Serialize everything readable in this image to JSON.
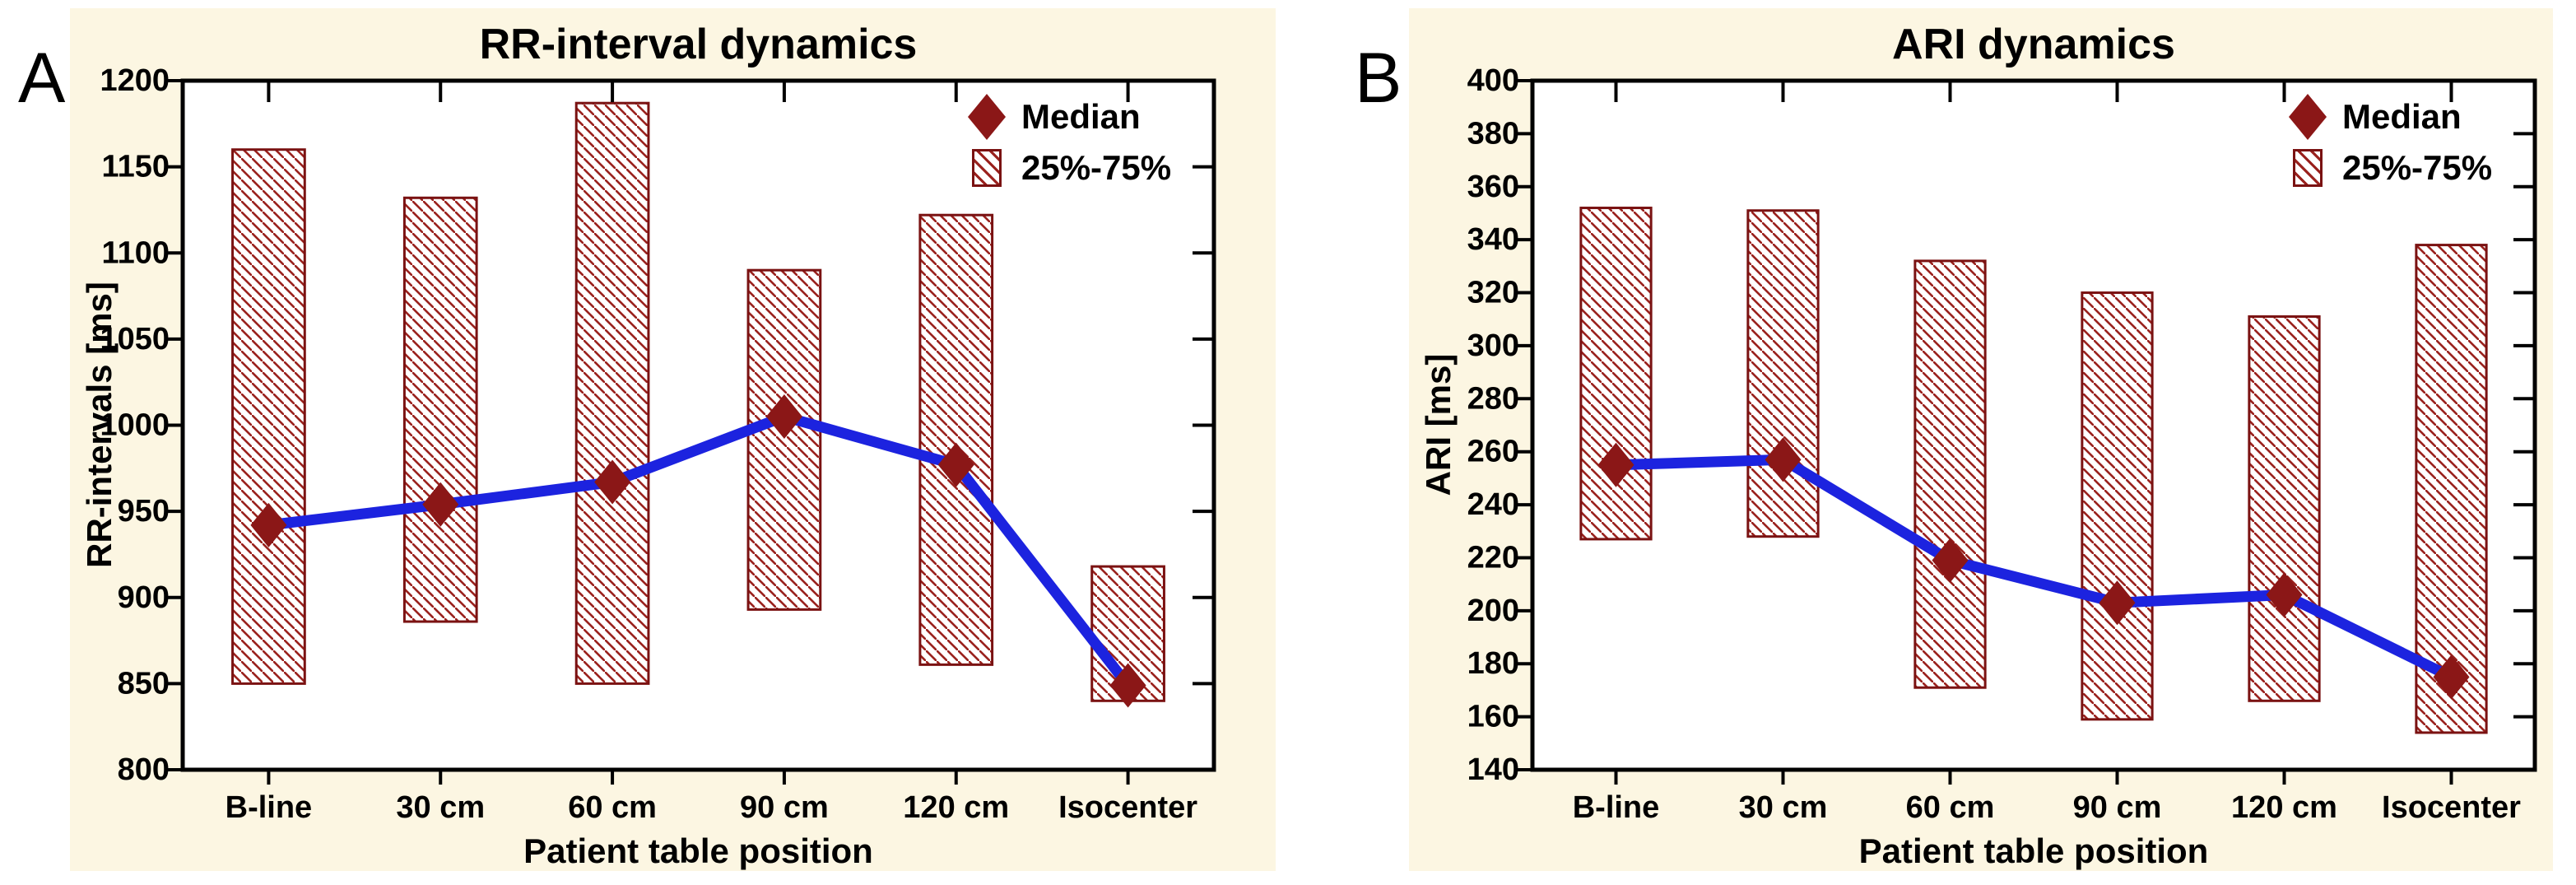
{
  "panels": [
    {
      "letter": "A"
    },
    {
      "letter": "B"
    }
  ],
  "legend": {
    "median_label": "Median",
    "iqr_label": "25%-75%"
  },
  "colors": {
    "figure_bg": "#ffffff",
    "panel_bg": "#fcf6e2",
    "plot_bg": "#ffffff",
    "frame": "#000000",
    "maroon": "#8b1717",
    "box_border": "#7a1212",
    "hatch_line": "#9a221e",
    "blue_line": "#1c23df",
    "text": "#000000"
  },
  "chart_data": [
    {
      "type": "box-median-line",
      "panel": "A",
      "title": "RR-interval dynamics",
      "xlabel": "Patient table position",
      "ylabel": "RR-intervals [ms]",
      "categories": [
        "B-line",
        "30 cm",
        "60 cm",
        "90 cm",
        "120 cm",
        "Isocenter"
      ],
      "ylim": [
        800,
        1200
      ],
      "ytick_step": 50,
      "median": [
        942,
        954,
        967,
        1005,
        977,
        849
      ],
      "q1": [
        850,
        886,
        850,
        893,
        861,
        840
      ],
      "q3": [
        1160,
        1132,
        1187,
        1090,
        1122,
        918
      ],
      "legend": [
        "Median",
        "25%-75%"
      ],
      "legend_position": "top-right",
      "grid": false
    },
    {
      "type": "box-median-line",
      "panel": "B",
      "title": "ARI dynamics",
      "xlabel": "Patient table position",
      "ylabel": "ARI [ms]",
      "categories": [
        "B-line",
        "30 cm",
        "60 cm",
        "90 cm",
        "120 cm",
        "Isocenter"
      ],
      "ylim": [
        140,
        400
      ],
      "ytick_step": 20,
      "median": [
        255,
        257,
        219,
        203,
        206,
        175
      ],
      "q1": [
        227,
        228,
        171,
        159,
        166,
        154
      ],
      "q3": [
        352,
        351,
        332,
        320,
        311,
        338
      ],
      "legend": [
        "Median",
        "25%-75%"
      ],
      "legend_position": "top-right",
      "grid": false
    }
  ]
}
